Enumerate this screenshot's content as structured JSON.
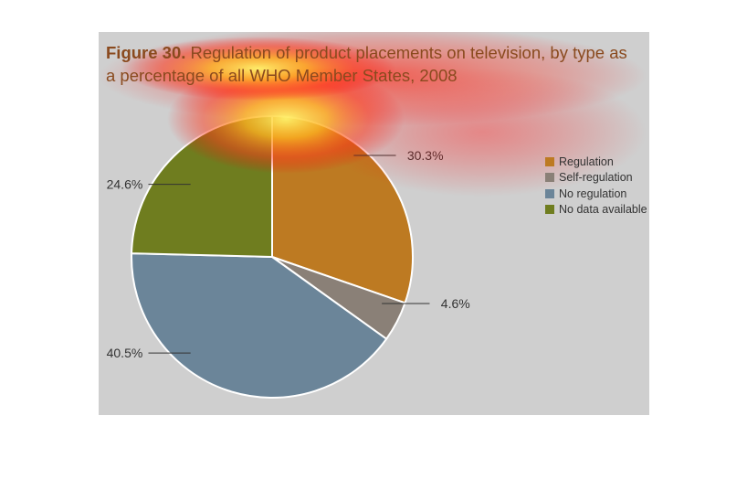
{
  "title": {
    "lead": "Figure 30.",
    "text": "Regulation of product placements on television, by type as a percentage of all WHO Member States, 2008"
  },
  "colors": {
    "panel_bg": "#cfcfcf",
    "title": "#8a4a1e"
  },
  "chart_data": {
    "type": "pie",
    "start_angle_deg": 0,
    "direction": "clockwise",
    "legend_position": "right",
    "slices": [
      {
        "label": "Regulation",
        "value": 30.3,
        "display": "30.3%",
        "color": "#bd7a22"
      },
      {
        "label": "Self-regulation",
        "value": 4.6,
        "display": "4.6%",
        "color": "#8a8077"
      },
      {
        "label": "No regulation",
        "value": 40.5,
        "display": "40.5%",
        "color": "#6b8599"
      },
      {
        "label": "No data available",
        "value": 24.6,
        "display": "24.6%",
        "color": "#6f7d1f"
      }
    ]
  }
}
